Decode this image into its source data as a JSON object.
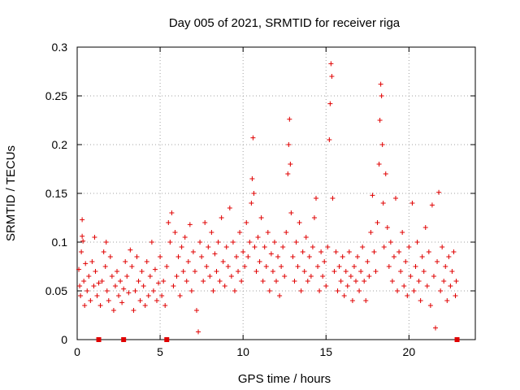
{
  "chart_data": {
    "type": "scatter",
    "title": "Day 005 of 2021, SRMTID for receiver riga",
    "xlabel": "GPS time / hours",
    "ylabel": "SRMTID / TECUs",
    "xlim": [
      0,
      24
    ],
    "ylim": [
      0,
      0.3
    ],
    "x_ticks": [
      0,
      5,
      10,
      15,
      20
    ],
    "x_tick_labels": [
      "0",
      "5",
      "10",
      "15",
      "20"
    ],
    "y_ticks": [
      0,
      0.05,
      0.1,
      0.15,
      0.2,
      0.25,
      0.3
    ],
    "y_tick_labels": [
      "0",
      "0.05",
      "0.1",
      "0.15",
      "0.2",
      "0.25",
      "0.3"
    ],
    "grid": true,
    "marker": "plus",
    "color": "#e00000",
    "series": [
      {
        "name": "SRMTID",
        "points": [
          [
            0.1,
            0.072
          ],
          [
            0.15,
            0.055
          ],
          [
            0.2,
            0.045
          ],
          [
            0.25,
            0.09
          ],
          [
            0.3,
            0.123
          ],
          [
            0.3,
            0.106
          ],
          [
            0.35,
            0.101
          ],
          [
            0.4,
            0.06
          ],
          [
            0.45,
            0.035
          ],
          [
            0.5,
            0.078
          ],
          [
            0.6,
            0.05
          ],
          [
            0.7,
            0.065
          ],
          [
            0.8,
            0.04
          ],
          [
            0.9,
            0.08
          ],
          [
            1.0,
            0.055
          ],
          [
            1.05,
            0.105
          ],
          [
            1.1,
            0.07
          ],
          [
            1.2,
            0.045
          ],
          [
            1.3,
            0.058
          ],
          [
            1.4,
            0.035
          ],
          [
            1.5,
            0.06
          ],
          [
            1.6,
            0.09
          ],
          [
            1.7,
            0.075
          ],
          [
            1.75,
            0.1
          ],
          [
            1.8,
            0.05
          ],
          [
            1.9,
            0.04
          ],
          [
            2.0,
            0.085
          ],
          [
            2.1,
            0.065
          ],
          [
            2.2,
            0.03
          ],
          [
            2.3,
            0.055
          ],
          [
            2.4,
            0.07
          ],
          [
            2.5,
            0.045
          ],
          [
            2.6,
            0.06
          ],
          [
            2.7,
            0.038
          ],
          [
            2.8,
            0.052
          ],
          [
            2.9,
            0.08
          ],
          [
            3.0,
            0.065
          ],
          [
            3.1,
            0.048
          ],
          [
            3.2,
            0.092
          ],
          [
            3.3,
            0.075
          ],
          [
            3.4,
            0.03
          ],
          [
            3.5,
            0.05
          ],
          [
            3.6,
            0.085
          ],
          [
            3.7,
            0.06
          ],
          [
            3.8,
            0.04
          ],
          [
            3.9,
            0.07
          ],
          [
            4.0,
            0.055
          ],
          [
            4.1,
            0.035
          ],
          [
            4.2,
            0.08
          ],
          [
            4.3,
            0.045
          ],
          [
            4.4,
            0.065
          ],
          [
            4.5,
            0.1
          ],
          [
            4.6,
            0.05
          ],
          [
            4.7,
            0.072
          ],
          [
            4.8,
            0.04
          ],
          [
            4.9,
            0.058
          ],
          [
            5.0,
            0.085
          ],
          [
            5.1,
            0.045
          ],
          [
            5.2,
            0.06
          ],
          [
            5.3,
            0.035
          ],
          [
            5.4,
            0.075
          ],
          [
            5.5,
            0.12
          ],
          [
            5.6,
            0.1
          ],
          [
            5.7,
            0.13
          ],
          [
            5.8,
            0.055
          ],
          [
            5.9,
            0.11
          ],
          [
            6.0,
            0.065
          ],
          [
            6.1,
            0.085
          ],
          [
            6.2,
            0.045
          ],
          [
            6.3,
            0.095
          ],
          [
            6.4,
            0.07
          ],
          [
            6.5,
            0.105
          ],
          [
            6.6,
            0.06
          ],
          [
            6.7,
            0.08
          ],
          [
            6.8,
            0.118
          ],
          [
            6.9,
            0.05
          ],
          [
            7.0,
            0.09
          ],
          [
            7.1,
            0.07
          ],
          [
            7.2,
            0.03
          ],
          [
            7.3,
            0.008
          ],
          [
            7.4,
            0.1
          ],
          [
            7.5,
            0.085
          ],
          [
            7.6,
            0.06
          ],
          [
            7.7,
            0.12
          ],
          [
            7.8,
            0.075
          ],
          [
            7.9,
            0.095
          ],
          [
            8.0,
            0.065
          ],
          [
            8.1,
            0.11
          ],
          [
            8.2,
            0.05
          ],
          [
            8.3,
            0.088
          ],
          [
            8.4,
            0.07
          ],
          [
            8.5,
            0.1
          ],
          [
            8.6,
            0.06
          ],
          [
            8.7,
            0.125
          ],
          [
            8.8,
            0.08
          ],
          [
            8.9,
            0.055
          ],
          [
            9.0,
            0.095
          ],
          [
            9.1,
            0.075
          ],
          [
            9.2,
            0.135
          ],
          [
            9.3,
            0.065
          ],
          [
            9.4,
            0.1
          ],
          [
            9.5,
            0.05
          ],
          [
            9.6,
            0.085
          ],
          [
            9.7,
            0.07
          ],
          [
            9.8,
            0.11
          ],
          [
            9.9,
            0.06
          ],
          [
            10.0,
            0.09
          ],
          [
            10.1,
            0.075
          ],
          [
            10.2,
            0.12
          ],
          [
            10.3,
            0.085
          ],
          [
            10.4,
            0.1
          ],
          [
            10.5,
            0.14
          ],
          [
            10.55,
            0.165
          ],
          [
            10.6,
            0.207
          ],
          [
            10.65,
            0.15
          ],
          [
            10.7,
            0.095
          ],
          [
            10.8,
            0.07
          ],
          [
            10.9,
            0.105
          ],
          [
            11.0,
            0.08
          ],
          [
            11.1,
            0.125
          ],
          [
            11.2,
            0.06
          ],
          [
            11.3,
            0.095
          ],
          [
            11.4,
            0.075
          ],
          [
            11.5,
            0.11
          ],
          [
            11.6,
            0.05
          ],
          [
            11.7,
            0.088
          ],
          [
            11.8,
            0.07
          ],
          [
            11.9,
            0.1
          ],
          [
            12.0,
            0.06
          ],
          [
            12.1,
            0.085
          ],
          [
            12.2,
            0.045
          ],
          [
            12.3,
            0.075
          ],
          [
            12.4,
            0.095
          ],
          [
            12.5,
            0.065
          ],
          [
            12.6,
            0.11
          ],
          [
            12.7,
            0.17
          ],
          [
            12.75,
            0.2
          ],
          [
            12.8,
            0.226
          ],
          [
            12.85,
            0.18
          ],
          [
            12.9,
            0.13
          ],
          [
            13.0,
            0.085
          ],
          [
            13.1,
            0.06
          ],
          [
            13.2,
            0.1
          ],
          [
            13.3,
            0.075
          ],
          [
            13.4,
            0.12
          ],
          [
            13.5,
            0.05
          ],
          [
            13.6,
            0.09
          ],
          [
            13.7,
            0.07
          ],
          [
            13.8,
            0.105
          ],
          [
            13.9,
            0.06
          ],
          [
            14.0,
            0.085
          ],
          [
            14.1,
            0.065
          ],
          [
            14.2,
            0.095
          ],
          [
            14.3,
            0.125
          ],
          [
            14.4,
            0.145
          ],
          [
            14.5,
            0.075
          ],
          [
            14.6,
            0.05
          ],
          [
            14.7,
            0.09
          ],
          [
            14.8,
            0.065
          ],
          [
            14.9,
            0.08
          ],
          [
            15.0,
            0.055
          ],
          [
            15.1,
            0.095
          ],
          [
            15.2,
            0.205
          ],
          [
            15.25,
            0.242
          ],
          [
            15.3,
            0.283
          ],
          [
            15.35,
            0.27
          ],
          [
            15.4,
            0.145
          ],
          [
            15.5,
            0.07
          ],
          [
            15.6,
            0.09
          ],
          [
            15.7,
            0.05
          ],
          [
            15.8,
            0.075
          ],
          [
            15.9,
            0.06
          ],
          [
            16.0,
            0.085
          ],
          [
            16.1,
            0.045
          ],
          [
            16.2,
            0.07
          ],
          [
            16.3,
            0.055
          ],
          [
            16.4,
            0.09
          ],
          [
            16.5,
            0.065
          ],
          [
            16.6,
            0.04
          ],
          [
            16.7,
            0.075
          ],
          [
            16.8,
            0.06
          ],
          [
            16.9,
            0.085
          ],
          [
            17.0,
            0.05
          ],
          [
            17.1,
            0.07
          ],
          [
            17.2,
            0.095
          ],
          [
            17.3,
            0.06
          ],
          [
            17.4,
            0.04
          ],
          [
            17.5,
            0.08
          ],
          [
            17.6,
            0.065
          ],
          [
            17.7,
            0.11
          ],
          [
            17.8,
            0.148
          ],
          [
            17.9,
            0.09
          ],
          [
            18.0,
            0.07
          ],
          [
            18.1,
            0.12
          ],
          [
            18.2,
            0.18
          ],
          [
            18.25,
            0.225
          ],
          [
            18.3,
            0.262
          ],
          [
            18.35,
            0.25
          ],
          [
            18.4,
            0.2
          ],
          [
            18.45,
            0.14
          ],
          [
            18.5,
            0.095
          ],
          [
            18.6,
            0.17
          ],
          [
            18.7,
            0.115
          ],
          [
            18.8,
            0.075
          ],
          [
            18.9,
            0.1
          ],
          [
            19.0,
            0.06
          ],
          [
            19.1,
            0.085
          ],
          [
            19.2,
            0.145
          ],
          [
            19.3,
            0.05
          ],
          [
            19.4,
            0.09
          ],
          [
            19.5,
            0.07
          ],
          [
            19.6,
            0.11
          ],
          [
            19.7,
            0.055
          ],
          [
            19.8,
            0.08
          ],
          [
            19.9,
            0.045
          ],
          [
            20.0,
            0.095
          ],
          [
            20.1,
            0.065
          ],
          [
            20.2,
            0.14
          ],
          [
            20.3,
            0.05
          ],
          [
            20.4,
            0.075
          ],
          [
            20.5,
            0.1
          ],
          [
            20.6,
            0.06
          ],
          [
            20.7,
            0.04
          ],
          [
            20.8,
            0.085
          ],
          [
            20.9,
            0.07
          ],
          [
            21.0,
            0.115
          ],
          [
            21.1,
            0.055
          ],
          [
            21.2,
            0.09
          ],
          [
            21.3,
            0.035
          ],
          [
            21.4,
            0.138
          ],
          [
            21.5,
            0.065
          ],
          [
            21.6,
            0.012
          ],
          [
            21.7,
            0.08
          ],
          [
            21.8,
            0.151
          ],
          [
            21.9,
            0.05
          ],
          [
            22.0,
            0.095
          ],
          [
            22.1,
            0.06
          ],
          [
            22.2,
            0.075
          ],
          [
            22.3,
            0.04
          ],
          [
            22.4,
            0.085
          ],
          [
            22.5,
            0.055
          ],
          [
            22.6,
            0.07
          ],
          [
            22.7,
            0.09
          ],
          [
            22.8,
            0.045
          ],
          [
            22.85,
            0.06
          ]
        ]
      }
    ],
    "flags_at_zero": [
      1.3,
      2.8,
      5.4,
      22.9
    ]
  }
}
